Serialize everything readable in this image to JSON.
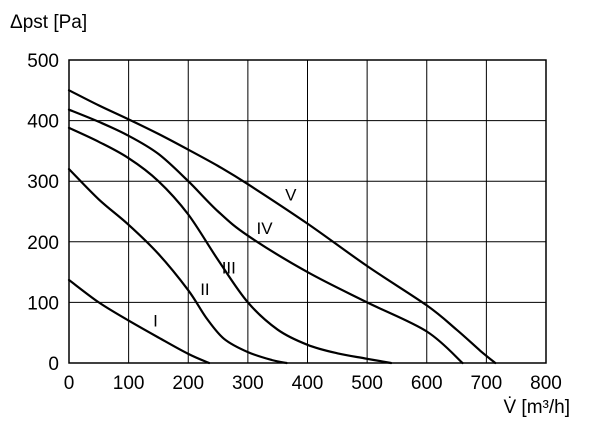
{
  "chart_data": {
    "type": "line",
    "ylabel": "Δpst [Pa]",
    "xlabel": "V̇ [m³/h]",
    "xlim": [
      0,
      800
    ],
    "ylim": [
      0,
      500
    ],
    "x_ticks": [
      0,
      100,
      200,
      300,
      400,
      500,
      600,
      700,
      800
    ],
    "y_ticks": [
      0,
      100,
      200,
      300,
      400,
      500
    ],
    "grid": true,
    "series": [
      {
        "name": "I",
        "label_at": [
          145,
          70
        ],
        "points": [
          [
            0,
            137
          ],
          [
            50,
            100
          ],
          [
            100,
            70
          ],
          [
            150,
            42
          ],
          [
            200,
            15
          ],
          [
            235,
            0
          ]
        ]
      },
      {
        "name": "II",
        "label_at": [
          228,
          122
        ],
        "points": [
          [
            0,
            320
          ],
          [
            50,
            270
          ],
          [
            100,
            228
          ],
          [
            150,
            180
          ],
          [
            200,
            120
          ],
          [
            230,
            75
          ],
          [
            260,
            40
          ],
          [
            300,
            18
          ],
          [
            340,
            5
          ],
          [
            365,
            0
          ]
        ]
      },
      {
        "name": "III",
        "label_at": [
          268,
          158
        ],
        "points": [
          [
            0,
            388
          ],
          [
            50,
            365
          ],
          [
            100,
            338
          ],
          [
            150,
            300
          ],
          [
            200,
            245
          ],
          [
            250,
            170
          ],
          [
            300,
            100
          ],
          [
            350,
            55
          ],
          [
            400,
            30
          ],
          [
            450,
            16
          ],
          [
            500,
            7
          ],
          [
            540,
            0
          ]
        ]
      },
      {
        "name": "IV",
        "label_at": [
          328,
          223
        ],
        "points": [
          [
            0,
            418
          ],
          [
            50,
            398
          ],
          [
            100,
            375
          ],
          [
            150,
            345
          ],
          [
            200,
            300
          ],
          [
            250,
            250
          ],
          [
            300,
            210
          ],
          [
            400,
            150
          ],
          [
            500,
            100
          ],
          [
            600,
            52
          ],
          [
            660,
            0
          ]
        ]
      },
      {
        "name": "V",
        "label_at": [
          372,
          278
        ],
        "points": [
          [
            0,
            450
          ],
          [
            50,
            425
          ],
          [
            100,
            402
          ],
          [
            150,
            378
          ],
          [
            200,
            352
          ],
          [
            250,
            325
          ],
          [
            300,
            295
          ],
          [
            400,
            230
          ],
          [
            500,
            160
          ],
          [
            600,
            95
          ],
          [
            650,
            55
          ],
          [
            690,
            20
          ],
          [
            715,
            0
          ]
        ]
      }
    ]
  }
}
